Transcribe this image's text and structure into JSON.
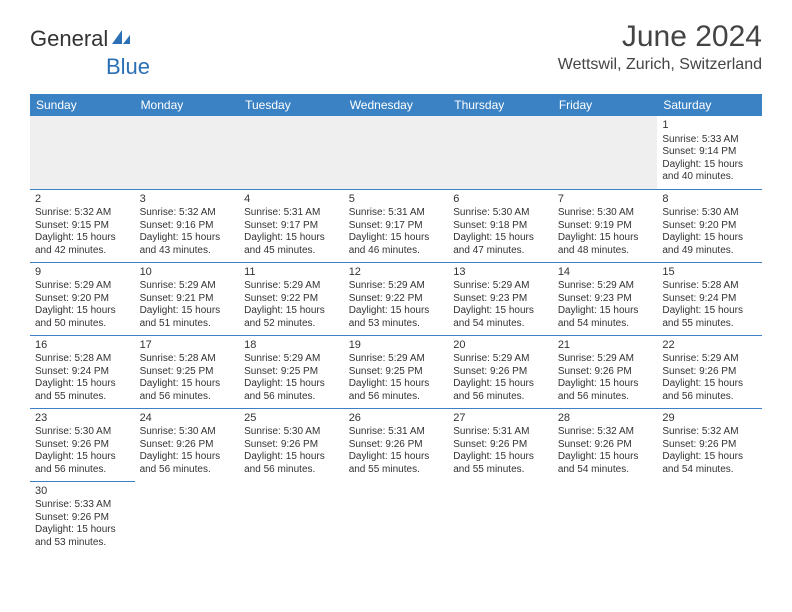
{
  "logo": {
    "text1": "General",
    "text2": "Blue"
  },
  "title": "June 2024",
  "location": "Wettswil, Zurich, Switzerland",
  "colors": {
    "header_bg": "#3b82c4",
    "header_text": "#ffffff",
    "border": "#3b82c4",
    "text": "#333333",
    "logo_blue": "#2b6fb5",
    "empty_bg": "#efefef"
  },
  "weekdays": [
    "Sunday",
    "Monday",
    "Tuesday",
    "Wednesday",
    "Thursday",
    "Friday",
    "Saturday"
  ],
  "weeks": [
    [
      null,
      null,
      null,
      null,
      null,
      null,
      {
        "n": "1",
        "sr": "5:33 AM",
        "ss": "9:14 PM",
        "dh": "15",
        "dm": "40"
      }
    ],
    [
      {
        "n": "2",
        "sr": "5:32 AM",
        "ss": "9:15 PM",
        "dh": "15",
        "dm": "42"
      },
      {
        "n": "3",
        "sr": "5:32 AM",
        "ss": "9:16 PM",
        "dh": "15",
        "dm": "43"
      },
      {
        "n": "4",
        "sr": "5:31 AM",
        "ss": "9:17 PM",
        "dh": "15",
        "dm": "45"
      },
      {
        "n": "5",
        "sr": "5:31 AM",
        "ss": "9:17 PM",
        "dh": "15",
        "dm": "46"
      },
      {
        "n": "6",
        "sr": "5:30 AM",
        "ss": "9:18 PM",
        "dh": "15",
        "dm": "47"
      },
      {
        "n": "7",
        "sr": "5:30 AM",
        "ss": "9:19 PM",
        "dh": "15",
        "dm": "48"
      },
      {
        "n": "8",
        "sr": "5:30 AM",
        "ss": "9:20 PM",
        "dh": "15",
        "dm": "49"
      }
    ],
    [
      {
        "n": "9",
        "sr": "5:29 AM",
        "ss": "9:20 PM",
        "dh": "15",
        "dm": "50"
      },
      {
        "n": "10",
        "sr": "5:29 AM",
        "ss": "9:21 PM",
        "dh": "15",
        "dm": "51"
      },
      {
        "n": "11",
        "sr": "5:29 AM",
        "ss": "9:22 PM",
        "dh": "15",
        "dm": "52"
      },
      {
        "n": "12",
        "sr": "5:29 AM",
        "ss": "9:22 PM",
        "dh": "15",
        "dm": "53"
      },
      {
        "n": "13",
        "sr": "5:29 AM",
        "ss": "9:23 PM",
        "dh": "15",
        "dm": "54"
      },
      {
        "n": "14",
        "sr": "5:29 AM",
        "ss": "9:23 PM",
        "dh": "15",
        "dm": "54"
      },
      {
        "n": "15",
        "sr": "5:28 AM",
        "ss": "9:24 PM",
        "dh": "15",
        "dm": "55"
      }
    ],
    [
      {
        "n": "16",
        "sr": "5:28 AM",
        "ss": "9:24 PM",
        "dh": "15",
        "dm": "55"
      },
      {
        "n": "17",
        "sr": "5:28 AM",
        "ss": "9:25 PM",
        "dh": "15",
        "dm": "56"
      },
      {
        "n": "18",
        "sr": "5:29 AM",
        "ss": "9:25 PM",
        "dh": "15",
        "dm": "56"
      },
      {
        "n": "19",
        "sr": "5:29 AM",
        "ss": "9:25 PM",
        "dh": "15",
        "dm": "56"
      },
      {
        "n": "20",
        "sr": "5:29 AM",
        "ss": "9:26 PM",
        "dh": "15",
        "dm": "56"
      },
      {
        "n": "21",
        "sr": "5:29 AM",
        "ss": "9:26 PM",
        "dh": "15",
        "dm": "56"
      },
      {
        "n": "22",
        "sr": "5:29 AM",
        "ss": "9:26 PM",
        "dh": "15",
        "dm": "56"
      }
    ],
    [
      {
        "n": "23",
        "sr": "5:30 AM",
        "ss": "9:26 PM",
        "dh": "15",
        "dm": "56"
      },
      {
        "n": "24",
        "sr": "5:30 AM",
        "ss": "9:26 PM",
        "dh": "15",
        "dm": "56"
      },
      {
        "n": "25",
        "sr": "5:30 AM",
        "ss": "9:26 PM",
        "dh": "15",
        "dm": "56"
      },
      {
        "n": "26",
        "sr": "5:31 AM",
        "ss": "9:26 PM",
        "dh": "15",
        "dm": "55"
      },
      {
        "n": "27",
        "sr": "5:31 AM",
        "ss": "9:26 PM",
        "dh": "15",
        "dm": "55"
      },
      {
        "n": "28",
        "sr": "5:32 AM",
        "ss": "9:26 PM",
        "dh": "15",
        "dm": "54"
      },
      {
        "n": "29",
        "sr": "5:32 AM",
        "ss": "9:26 PM",
        "dh": "15",
        "dm": "54"
      }
    ],
    [
      {
        "n": "30",
        "sr": "5:33 AM",
        "ss": "9:26 PM",
        "dh": "15",
        "dm": "53"
      },
      null,
      null,
      null,
      null,
      null,
      null
    ]
  ],
  "labels": {
    "sunrise": "Sunrise:",
    "sunset": "Sunset:",
    "daylight": "Daylight:",
    "hours": "hours",
    "and": "and",
    "minutes": "minutes."
  }
}
